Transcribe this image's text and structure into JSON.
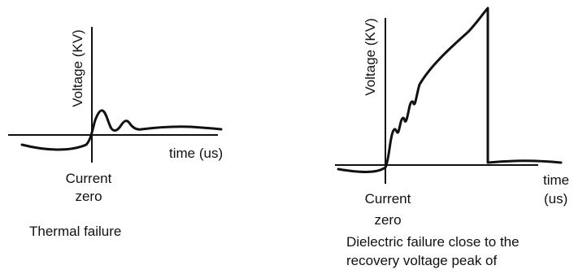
{
  "left_panel": {
    "y_axis_label": "Voltage (KV)",
    "x_axis_label": "time (us)",
    "origin_label_line1": "Current",
    "origin_label_line2": "zero",
    "caption": "Thermal failure"
  },
  "right_panel": {
    "y_axis_label": "Voltage (KV)",
    "x_axis_label_line1": "time",
    "x_axis_label_line2": "(us)",
    "origin_label_line1": "Current",
    "origin_label_line2": "zero",
    "caption_line1": "Dielectric failure close to the",
    "caption_line2": "recovery voltage peak of"
  }
}
